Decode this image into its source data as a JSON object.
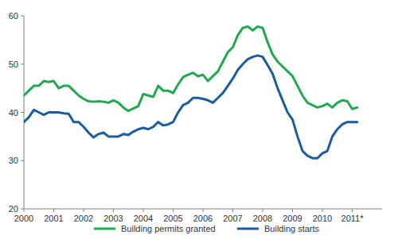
{
  "chart_data": {
    "type": "line",
    "x": [
      2000,
      2000.167,
      2000.333,
      2000.5,
      2000.667,
      2000.833,
      2001,
      2001.167,
      2001.333,
      2001.5,
      2001.667,
      2001.833,
      2002,
      2002.167,
      2002.333,
      2002.5,
      2002.667,
      2002.833,
      2003,
      2003.167,
      2003.333,
      2003.5,
      2003.667,
      2003.833,
      2004,
      2004.167,
      2004.333,
      2004.5,
      2004.667,
      2004.833,
      2005,
      2005.167,
      2005.333,
      2005.5,
      2005.667,
      2005.833,
      2006,
      2006.167,
      2006.333,
      2006.5,
      2006.667,
      2006.833,
      2007,
      2007.167,
      2007.333,
      2007.5,
      2007.667,
      2007.833,
      2008,
      2008.167,
      2008.333,
      2008.5,
      2008.667,
      2008.833,
      2009,
      2009.167,
      2009.333,
      2009.5,
      2009.667,
      2009.833,
      2010,
      2010.167,
      2010.333,
      2010.5,
      2010.667,
      2010.833,
      2011,
      2011.167
    ],
    "series": [
      {
        "name": "Building permits granted",
        "color": "#22a84f",
        "values": [
          43.5,
          44.5,
          45.5,
          45.5,
          46.5,
          46.3,
          46.5,
          45,
          45.5,
          45.5,
          44.5,
          43.5,
          42.8,
          42.3,
          42.2,
          42.3,
          42.2,
          42,
          42.5,
          42,
          41,
          40.3,
          40.8,
          41.3,
          43.8,
          43.5,
          43.2,
          45.5,
          44.5,
          44.5,
          44,
          45.8,
          47.3,
          47.8,
          48.2,
          47.5,
          47.8,
          46.5,
          47.5,
          48.5,
          50.5,
          52.5,
          53.5,
          56,
          57.5,
          57.8,
          57,
          57.8,
          57.5,
          54.5,
          52,
          50.5,
          49.5,
          48.5,
          47.5,
          45.5,
          43.5,
          42,
          41.5,
          41,
          41.3,
          41.8,
          41,
          42,
          42.5,
          42.3,
          40.7,
          41
        ]
      },
      {
        "name": "Building starts",
        "color": "#1a5c9e",
        "values": [
          38,
          39,
          40.5,
          40,
          39.5,
          40,
          40,
          40,
          39.8,
          39.7,
          38,
          38,
          37,
          35.8,
          34.8,
          35.5,
          35.8,
          35,
          35,
          35,
          35.5,
          35.3,
          36,
          36.5,
          36.8,
          36.5,
          37,
          38,
          37.3,
          37.5,
          38,
          40,
          41.5,
          42,
          43,
          43,
          42.8,
          42.5,
          42,
          43,
          44,
          45.5,
          47,
          48.8,
          50,
          51,
          51.5,
          51.8,
          51.5,
          49.8,
          48,
          45,
          42.5,
          40,
          38.5,
          35,
          32,
          31,
          30.5,
          30.5,
          31.5,
          32,
          35,
          36.5,
          37.5,
          38,
          38,
          38
        ]
      }
    ],
    "xlim": [
      2000,
      2012
    ],
    "xticks": [
      2000,
      2001,
      2002,
      2003,
      2004,
      2005,
      2006,
      2007,
      2008,
      2009,
      2010,
      {
        "value": 2011,
        "label": "2011*"
      }
    ],
    "ylim": [
      20,
      60
    ],
    "yticks": [
      20,
      30,
      40,
      50,
      60
    ],
    "grid": false,
    "legend": "bottom"
  }
}
